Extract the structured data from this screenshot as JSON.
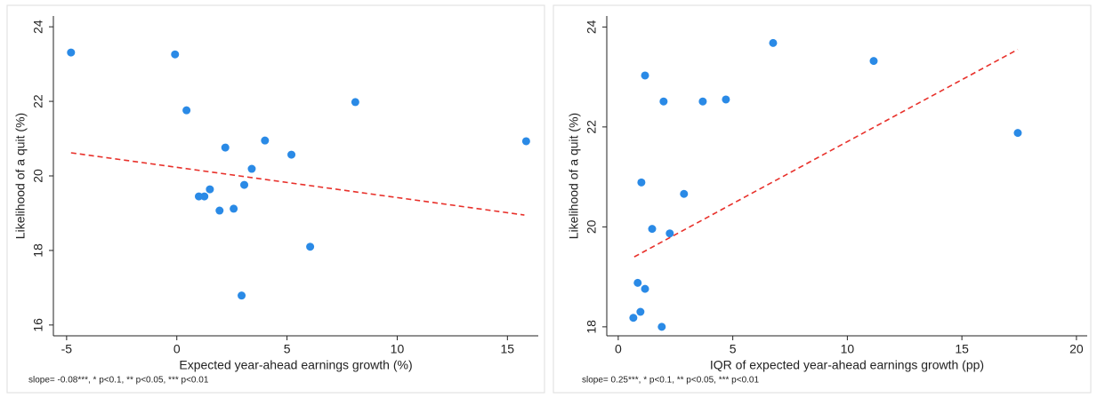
{
  "chart_data": [
    {
      "type": "scatter",
      "x_label": "Expected year-ahead earnings growth (%)",
      "y_label": "Likelihood of a quit (%)",
      "note": "slope= -0.08***, * p<0.1, ** p<0.05, *** p<0.01",
      "color": "#2a8ae6",
      "x": [
        -4.8,
        -0.08,
        0.44,
        8.1,
        2.2,
        4.0,
        5.2,
        15.85,
        3.4,
        1.5,
        1.0,
        1.25,
        3.06,
        1.94,
        2.58,
        6.05,
        2.94
      ],
      "y": [
        23.31,
        23.26,
        21.76,
        21.98,
        20.76,
        20.95,
        20.57,
        20.93,
        20.19,
        19.64,
        19.45,
        19.45,
        19.76,
        19.07,
        19.12,
        18.1,
        16.79
      ],
      "fit": {
        "color": "#e8312b",
        "x": [
          -4.8,
          15.77
        ],
        "y": [
          20.62,
          18.95
        ]
      },
      "xlim": [
        -5.6,
        16.4
      ],
      "ylim": [
        15.71,
        24.29
      ],
      "xticks": [
        -5,
        0,
        5,
        10,
        15
      ],
      "yticks": [
        16,
        18,
        20,
        22,
        24
      ]
    },
    {
      "type": "scatter",
      "x_label": "IQR of expected year-ahead earnings growth (pp)",
      "y_label": "Likelihood of a quit (%)",
      "note": "slope= 0.25***, * p<0.1, ** p<0.05, *** p<0.01",
      "color": "#2a8ae6",
      "x": [
        6.76,
        1.17,
        1.98,
        3.69,
        4.7,
        11.15,
        17.44,
        1.01,
        2.87,
        1.48,
        2.25,
        0.85,
        1.17,
        0.97,
        0.66,
        1.9
      ],
      "y": [
        23.68,
        23.03,
        22.51,
        22.51,
        22.55,
        23.32,
        21.88,
        20.89,
        20.66,
        19.96,
        19.87,
        18.88,
        18.76,
        18.3,
        18.18,
        18.0
      ],
      "fit": {
        "color": "#e8312b",
        "x": [
          0.7,
          17.44
        ],
        "y": [
          19.4,
          23.55
        ]
      },
      "xlim": [
        -0.5,
        20.47
      ],
      "ylim": [
        17.82,
        24.22
      ],
      "xticks": [
        0,
        5,
        10,
        15,
        20
      ],
      "yticks": [
        18,
        20,
        22,
        24
      ]
    }
  ]
}
